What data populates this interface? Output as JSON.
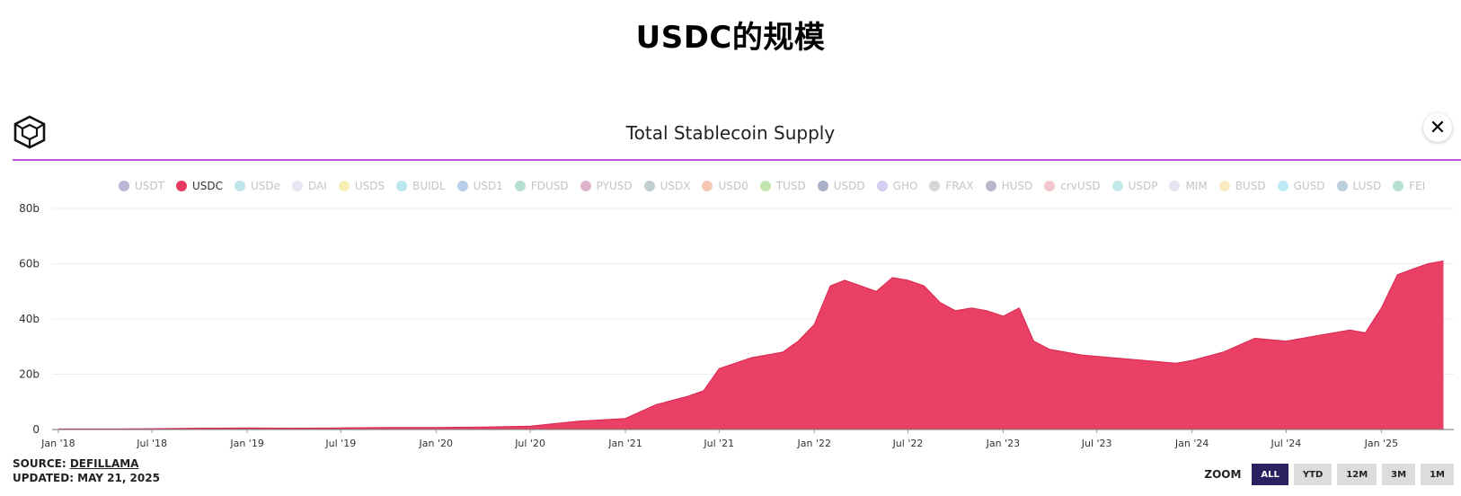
{
  "page_title": "USDC的规模",
  "logo_icon": "cube-logo-icon",
  "close_label": "✕",
  "chart_data": {
    "type": "area",
    "title": "Total Stablecoin Supply",
    "legend": [
      "USDT",
      "USDC",
      "USDe",
      "DAI",
      "USDS",
      "BUIDL",
      "USD1",
      "FDUSD",
      "PYUSD",
      "USDX",
      "USD0",
      "TUSD",
      "USDD",
      "GHO",
      "FRAX",
      "HUSD",
      "crvUSD",
      "USDP",
      "MIM",
      "BUSD",
      "GUSD",
      "LUSD",
      "FEI"
    ],
    "legend_colors": [
      "#b9b7d4",
      "#e8385f",
      "#bfe4ea",
      "#e7e6f5",
      "#f7efb5",
      "#bde7f0",
      "#b7cde8",
      "#b7e0d4",
      "#dcb5cc",
      "#bfcfd0",
      "#f6c7b4",
      "#c3e6b0",
      "#aab0c6",
      "#d5cdf2",
      "#d6d6d6",
      "#b9b6cc",
      "#f4c7cf",
      "#c4e8ec",
      "#e4e4f2",
      "#f8ecc0",
      "#bdeaf7",
      "#bccfdc",
      "#b6e0d3"
    ],
    "active_series": "USDC",
    "series": [
      {
        "name": "USDC",
        "color": "#ea4066",
        "x": [
          "2018-01",
          "2018-04",
          "2018-07",
          "2018-10",
          "2019-01",
          "2019-04",
          "2019-07",
          "2019-10",
          "2020-01",
          "2020-04",
          "2020-07",
          "2020-10",
          "2021-01",
          "2021-03",
          "2021-05",
          "2021-06",
          "2021-07",
          "2021-09",
          "2021-11",
          "2021-12",
          "2022-01",
          "2022-02",
          "2022-03",
          "2022-04",
          "2022-05",
          "2022-06",
          "2022-07",
          "2022-08",
          "2022-09",
          "2022-10",
          "2022-11",
          "2022-12",
          "2023-01",
          "2023-02",
          "2023-03",
          "2023-04",
          "2023-06",
          "2023-08",
          "2023-10",
          "2023-12",
          "2024-01",
          "2024-03",
          "2024-05",
          "2024-07",
          "2024-09",
          "2024-11",
          "2024-12",
          "2025-01",
          "2025-02",
          "2025-03",
          "2025-04",
          "2025-05"
        ],
        "values": [
          0.2,
          0.2,
          0.3,
          0.5,
          0.6,
          0.5,
          0.6,
          0.7,
          0.7,
          0.9,
          1.2,
          3,
          4,
          9,
          12,
          14,
          22,
          26,
          28,
          32,
          38,
          52,
          54,
          52,
          50,
          55,
          54,
          52,
          46,
          43,
          44,
          43,
          41,
          44,
          32,
          29,
          27,
          26,
          25,
          24,
          25,
          28,
          33,
          32,
          34,
          36,
          35,
          44,
          56,
          58,
          60,
          61
        ]
      }
    ],
    "y_ticks": [
      "0",
      "20b",
      "40b",
      "60b",
      "80b"
    ],
    "ylim": [
      0,
      80
    ],
    "x_ticks": [
      "Jan '18",
      "Jul '18",
      "Jan '19",
      "Jul '19",
      "Jan '20",
      "Jul '20",
      "Jan '21",
      "Jul '21",
      "Jan '22",
      "Jul '22",
      "Jan '23",
      "Jul '23",
      "Jan '24",
      "Jul '24",
      "Jan '25"
    ],
    "grid": true
  },
  "footer": {
    "source_label": "SOURCE:",
    "source_link": "DEFILLAMA",
    "updated": "UPDATED: MAY 21, 2025"
  },
  "zoom": {
    "label": "ZOOM",
    "buttons": [
      "ALL",
      "YTD",
      "12M",
      "3M",
      "1M"
    ],
    "active": "ALL"
  }
}
